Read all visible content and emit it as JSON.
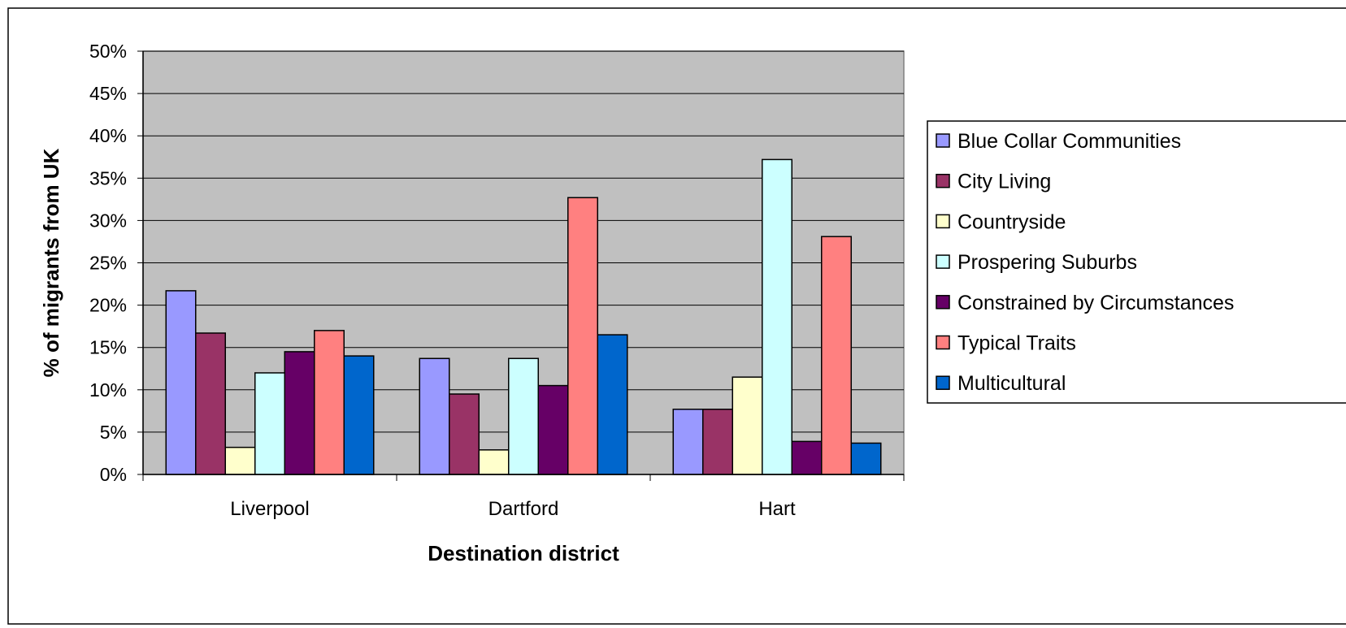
{
  "chart_data": {
    "type": "bar",
    "title": "",
    "xlabel": "Destination district",
    "ylabel": "% of migrants from UK",
    "ylim": [
      0,
      50
    ],
    "y_tick_step": 5,
    "y_tick_format": "{v}%",
    "grid": true,
    "legend_position": "right",
    "plot_background": "#c0c0c0",
    "categories": [
      "Liverpool",
      "Dartford",
      "Hart"
    ],
    "series": [
      {
        "name": "Blue Collar Communities",
        "color": "#9999ff",
        "values": [
          21.7,
          13.7,
          7.7
        ]
      },
      {
        "name": "City Living",
        "color": "#993366",
        "values": [
          16.7,
          9.5,
          7.7
        ]
      },
      {
        "name": "Countryside",
        "color": "#ffffcc",
        "values": [
          3.2,
          2.9,
          11.5
        ]
      },
      {
        "name": "Prospering Suburbs",
        "color": "#ccffff",
        "values": [
          12.0,
          13.7,
          37.2
        ]
      },
      {
        "name": "Constrained by Circumstances",
        "color": "#660066",
        "values": [
          14.5,
          10.5,
          3.9
        ]
      },
      {
        "name": "Typical Traits",
        "color": "#ff8080",
        "values": [
          17.0,
          32.7,
          28.1
        ]
      },
      {
        "name": "Multicultural",
        "color": "#0066cc",
        "values": [
          14.0,
          16.5,
          3.7
        ]
      }
    ]
  }
}
